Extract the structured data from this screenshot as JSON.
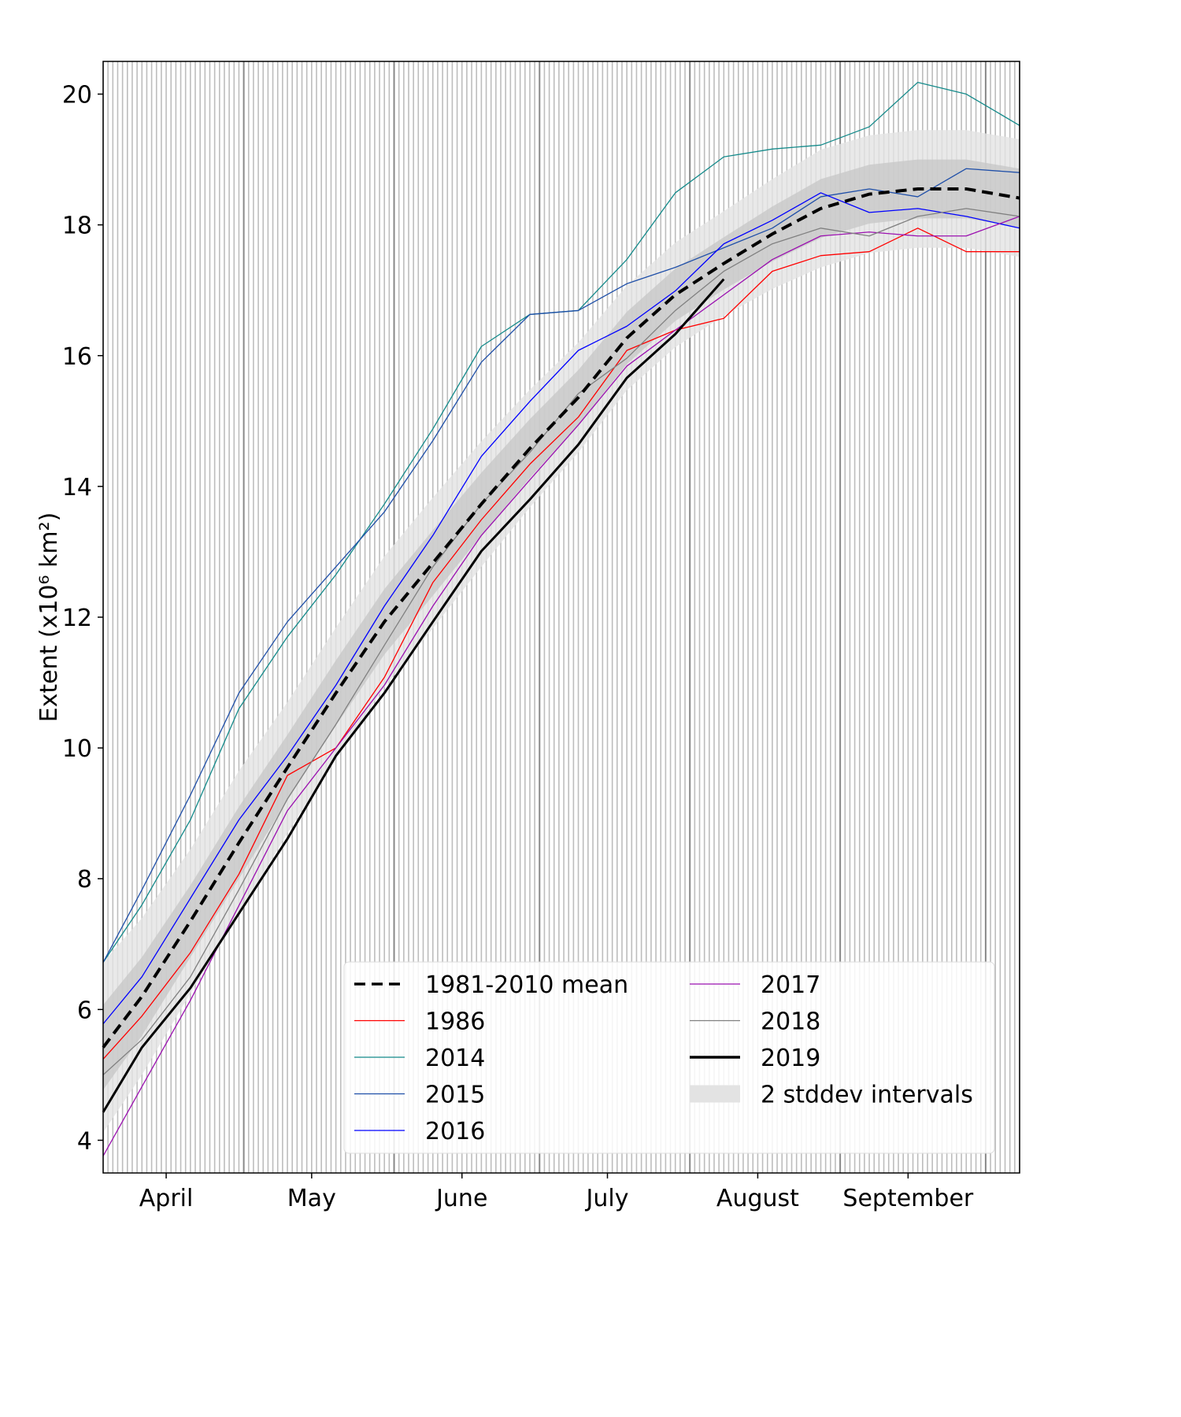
{
  "chart_data": {
    "type": "line",
    "title": "",
    "xlabel": "",
    "ylabel": "Extent (x10⁶ km²)",
    "xlim": [
      "04-02",
      "10-08"
    ],
    "ylim": [
      3.5,
      20.5
    ],
    "yticks": [
      4,
      6,
      8,
      10,
      12,
      14,
      16,
      18,
      20
    ],
    "xticks": [
      {
        "date": "04-15",
        "label": "April"
      },
      {
        "date": "05-15",
        "label": "May"
      },
      {
        "date": "06-15",
        "label": "June"
      },
      {
        "date": "07-15",
        "label": "July"
      },
      {
        "date": "08-15",
        "label": "August"
      },
      {
        "date": "09-15",
        "label": "September"
      }
    ],
    "grid": "daily vertical lines, darker at month starts",
    "legend_placement": "lower-right",
    "x": [
      "04-02",
      "04-10",
      "04-20",
      "04-30",
      "05-10",
      "05-20",
      "05-30",
      "06-09",
      "06-19",
      "06-29",
      "07-09",
      "07-19",
      "07-29",
      "08-08",
      "08-18",
      "08-28",
      "09-07",
      "09-17",
      "09-27",
      "10-08"
    ],
    "mean": {
      "name": "1981-2010 mean",
      "color": "#000000",
      "values": [
        5.42,
        6.2,
        7.35,
        8.55,
        9.7,
        10.84,
        11.93,
        12.83,
        13.73,
        14.58,
        15.36,
        16.27,
        16.93,
        17.41,
        17.86,
        18.25,
        18.47,
        18.55,
        18.55,
        18.41
      ]
    },
    "stddev": {
      "name": "2 stddev intervals",
      "values": [
        0.65,
        0.6,
        0.55,
        0.55,
        0.5,
        0.5,
        0.5,
        0.5,
        0.48,
        0.45,
        0.42,
        0.4,
        0.4,
        0.4,
        0.42,
        0.45,
        0.45,
        0.45,
        0.45,
        0.45
      ]
    },
    "series": [
      {
        "name": "1986",
        "color": "#ff0000",
        "width": 1.3,
        "values": [
          5.24,
          5.9,
          6.87,
          8.07,
          9.58,
          10.0,
          11.08,
          12.53,
          13.49,
          14.34,
          15.06,
          16.08,
          16.39,
          16.57,
          17.29,
          17.53,
          17.59,
          17.95,
          17.59,
          17.59
        ]
      },
      {
        "name": "2014",
        "color": "#138a8a",
        "width": 1.3,
        "values": [
          6.72,
          7.6,
          8.9,
          10.6,
          11.7,
          12.65,
          13.73,
          14.88,
          16.14,
          16.63,
          16.69,
          17.47,
          18.49,
          19.04,
          19.16,
          19.22,
          19.5,
          20.18,
          20.0,
          19.52
        ]
      },
      {
        "name": "2015",
        "color": "#1f4fa8",
        "width": 1.3,
        "values": [
          6.72,
          7.83,
          9.28,
          10.84,
          11.93,
          12.77,
          13.61,
          14.7,
          15.9,
          16.63,
          16.69,
          17.1,
          17.35,
          17.65,
          17.95,
          18.43,
          18.55,
          18.43,
          18.86,
          18.8
        ]
      },
      {
        "name": "2016",
        "color": "#0000ff",
        "width": 1.3,
        "values": [
          5.78,
          6.5,
          7.7,
          8.9,
          9.88,
          10.96,
          12.17,
          13.25,
          14.46,
          15.3,
          16.08,
          16.45,
          16.99,
          17.71,
          18.07,
          18.49,
          18.19,
          18.25,
          18.13,
          17.95
        ]
      },
      {
        "name": "2017",
        "color": "#9b10b0",
        "width": 1.3,
        "values": [
          3.76,
          4.82,
          6.14,
          7.59,
          9.04,
          10.0,
          10.96,
          12.17,
          13.25,
          14.1,
          14.94,
          15.84,
          16.39,
          16.93,
          17.47,
          17.83,
          17.89,
          17.83,
          17.83,
          18.13
        ]
      },
      {
        "name": "2018",
        "color": "#808080",
        "width": 1.3,
        "values": [
          5.0,
          5.54,
          6.5,
          7.83,
          9.22,
          10.36,
          11.57,
          12.77,
          13.73,
          14.52,
          15.42,
          15.96,
          16.69,
          17.29,
          17.71,
          17.95,
          17.83,
          18.13,
          18.25,
          18.13
        ]
      },
      {
        "name": "2019",
        "color": "#000000",
        "width": 3,
        "values": [
          4.43,
          5.42,
          6.33,
          7.47,
          8.61,
          9.88,
          10.84,
          11.93,
          13.01,
          13.8,
          14.64,
          15.66,
          16.33,
          17.17,
          null,
          null,
          null,
          null,
          null,
          null
        ]
      }
    ]
  },
  "legend": {
    "left": [
      {
        "label": "1981-2010 mean",
        "color": "#000000",
        "style": "dashed"
      },
      {
        "label": "1986",
        "color": "#ff0000",
        "style": "solid"
      },
      {
        "label": "2014",
        "color": "#138a8a",
        "style": "solid"
      },
      {
        "label": "2015",
        "color": "#1f4fa8",
        "style": "solid"
      },
      {
        "label": "2016",
        "color": "#0000ff",
        "style": "solid"
      }
    ],
    "right": [
      {
        "label": "2017",
        "color": "#9b10b0",
        "style": "solid"
      },
      {
        "label": "2018",
        "color": "#808080",
        "style": "solid"
      },
      {
        "label": "2019",
        "color": "#000000",
        "style": "thick"
      },
      {
        "label": "2 stddev intervals",
        "color": "#e3e3e3",
        "style": "patch"
      }
    ]
  }
}
